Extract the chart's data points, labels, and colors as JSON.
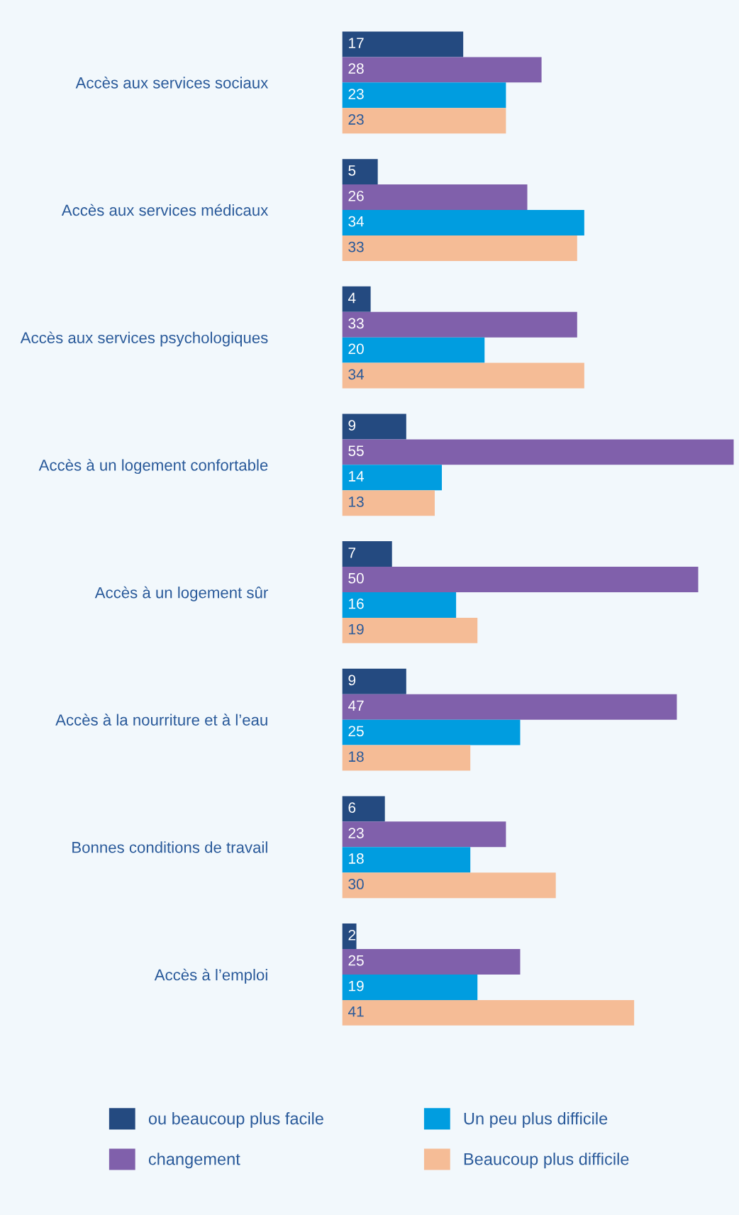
{
  "chart_data": {
    "type": "bar",
    "orientation": "horizontal",
    "categories": [
      "Accès aux services sociaux",
      "Accès aux services médicaux",
      "Accès aux services psychologiques",
      "Accès à un logement confortable",
      "Accès à un logement sûr",
      "Accès à la nourriture et à l’eau",
      "Bonnes conditions de travail",
      "Accès à l’emploi"
    ],
    "series": [
      {
        "name": "ou beaucoup plus facile",
        "color": "#244a80",
        "values": [
          17,
          5,
          4,
          9,
          7,
          9,
          6,
          2
        ]
      },
      {
        "name": "changement",
        "color": "#8060ab",
        "values": [
          28,
          26,
          33,
          55,
          50,
          47,
          23,
          25
        ]
      },
      {
        "name": "Un peu plus difficile",
        "color": "#009de0",
        "values": [
          23,
          34,
          20,
          14,
          16,
          25,
          18,
          19
        ]
      },
      {
        "name": "Beaucoup plus difficile",
        "color": "#f5bc96",
        "values": [
          23,
          33,
          34,
          13,
          19,
          18,
          30,
          41
        ]
      }
    ],
    "data_labels": true,
    "legend": "bottom",
    "grid": false
  }
}
